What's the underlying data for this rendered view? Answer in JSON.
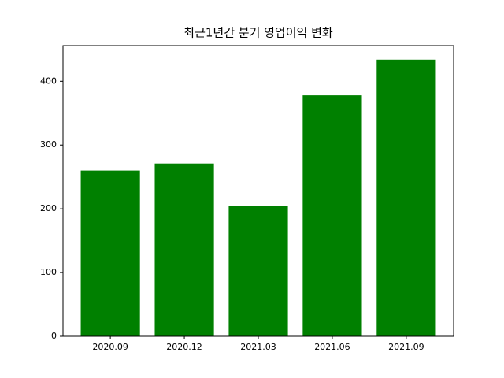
{
  "chart_data": {
    "type": "bar",
    "title": "최근1년간 분기 영업이익 변화",
    "categories": [
      "2020.09",
      "2020.12",
      "2021.03",
      "2021.06",
      "2021.09"
    ],
    "values": [
      260,
      271,
      204,
      378,
      434
    ],
    "color": "#008000",
    "ylim": [
      0,
      456
    ],
    "yticks": [
      0,
      100,
      200,
      300,
      400
    ]
  }
}
